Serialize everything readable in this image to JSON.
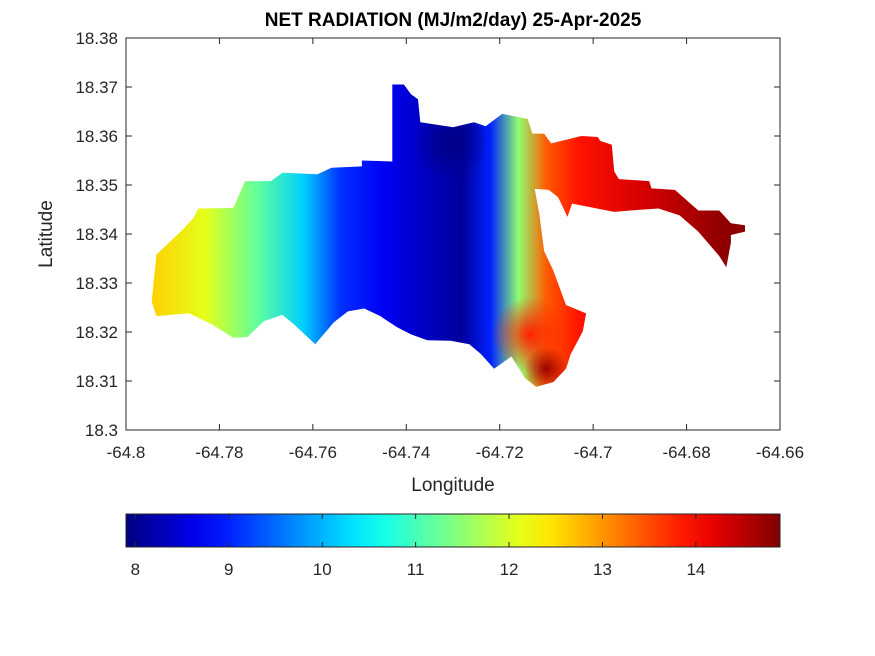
{
  "chart_data": {
    "type": "heatmap",
    "title": "NET RADIATION (MJ/m2/day) 25-Apr-2025",
    "xlabel": "Longitude",
    "ylabel": "Latitude",
    "xlim": [
      -64.8,
      -64.66
    ],
    "ylim": [
      18.3,
      18.38
    ],
    "xticks": [
      "-64.8",
      "-64.78",
      "-64.76",
      "-64.74",
      "-64.72",
      "-64.7",
      "-64.68",
      "-64.66"
    ],
    "yticks": [
      "18.3",
      "18.31",
      "18.32",
      "18.33",
      "18.34",
      "18.35",
      "18.36",
      "18.37",
      "18.38"
    ],
    "grid": false,
    "colormap": "jet",
    "colorbar": {
      "orientation": "horizontal",
      "placement": "bottom",
      "range": [
        7.9,
        14.9
      ],
      "ticks": [
        "8",
        "9",
        "10",
        "11",
        "12",
        "13",
        "14"
      ]
    },
    "landmass": [
      [
        -64.7935,
        18.3358
      ],
      [
        -64.7905,
        18.3385
      ],
      [
        -64.788,
        18.3408
      ],
      [
        -64.7855,
        18.3433
      ],
      [
        -64.7845,
        18.3452
      ],
      [
        -64.777,
        18.3453
      ],
      [
        -64.7745,
        18.3508
      ],
      [
        -64.769,
        18.3508
      ],
      [
        -64.7665,
        18.3525
      ],
      [
        -64.759,
        18.3522
      ],
      [
        -64.756,
        18.3535
      ],
      [
        -64.7495,
        18.3538
      ],
      [
        -64.7495,
        18.355
      ],
      [
        -64.743,
        18.3548
      ],
      [
        -64.743,
        18.3705
      ],
      [
        -64.7405,
        18.3705
      ],
      [
        -64.739,
        18.3685
      ],
      [
        -64.7375,
        18.3675
      ],
      [
        -64.737,
        18.3628
      ],
      [
        -64.73,
        18.3618
      ],
      [
        -64.7255,
        18.3628
      ],
      [
        -64.723,
        18.362
      ],
      [
        -64.7195,
        18.3645
      ],
      [
        -64.714,
        18.3635
      ],
      [
        -64.713,
        18.3605
      ],
      [
        -64.7105,
        18.3605
      ],
      [
        -64.709,
        18.3585
      ],
      [
        -64.7025,
        18.36
      ],
      [
        -64.699,
        18.3598
      ],
      [
        -64.6985,
        18.359
      ],
      [
        -64.696,
        18.3582
      ],
      [
        -64.6955,
        18.3528
      ],
      [
        -64.6945,
        18.3512
      ],
      [
        -64.688,
        18.3508
      ],
      [
        -64.6875,
        18.3493
      ],
      [
        -64.6825,
        18.349
      ],
      [
        -64.6775,
        18.3448
      ],
      [
        -64.673,
        18.3448
      ],
      [
        -64.6705,
        18.3422
      ],
      [
        -64.6675,
        18.3418
      ],
      [
        -64.6675,
        18.3405
      ],
      [
        -64.6705,
        18.3398
      ],
      [
        -64.6705,
        18.3382
      ],
      [
        -64.6715,
        18.3332
      ],
      [
        -64.673,
        18.3355
      ],
      [
        -64.6775,
        18.3405
      ],
      [
        -64.6815,
        18.3438
      ],
      [
        -64.686,
        18.3452
      ],
      [
        -64.692,
        18.3448
      ],
      [
        -64.6955,
        18.3445
      ],
      [
        -64.7045,
        18.3462
      ],
      [
        -64.7055,
        18.3435
      ],
      [
        -64.7065,
        18.3455
      ],
      [
        -64.7075,
        18.3475
      ],
      [
        -64.7095,
        18.349
      ],
      [
        -64.7125,
        18.3492
      ],
      [
        -64.7115,
        18.344
      ],
      [
        -64.7105,
        18.3365
      ],
      [
        -64.7085,
        18.3325
      ],
      [
        -64.7058,
        18.3255
      ],
      [
        -64.7015,
        18.3238
      ],
      [
        -64.7022,
        18.3202
      ],
      [
        -64.7035,
        18.3178
      ],
      [
        -64.7048,
        18.3155
      ],
      [
        -64.7058,
        18.3125
      ],
      [
        -64.7085,
        18.3098
      ],
      [
        -64.7122,
        18.3088
      ],
      [
        -64.7145,
        18.3105
      ],
      [
        -64.7175,
        18.315
      ],
      [
        -64.7212,
        18.3125
      ],
      [
        -64.724,
        18.3155
      ],
      [
        -64.7265,
        18.3175
      ],
      [
        -64.7305,
        18.3182
      ],
      [
        -64.7355,
        18.3183
      ],
      [
        -64.739,
        18.3195
      ],
      [
        -64.742,
        18.321
      ],
      [
        -64.7455,
        18.3232
      ],
      [
        -64.749,
        18.3248
      ],
      [
        -64.7525,
        18.3242
      ],
      [
        -64.7555,
        18.322
      ],
      [
        -64.7595,
        18.3175
      ],
      [
        -64.764,
        18.3215
      ],
      [
        -64.7665,
        18.3235
      ],
      [
        -64.7705,
        18.3222
      ],
      [
        -64.774,
        18.319
      ],
      [
        -64.777,
        18.3188
      ],
      [
        -64.7815,
        18.3215
      ],
      [
        -64.7865,
        18.3238
      ],
      [
        -64.7905,
        18.3235
      ],
      [
        -64.7935,
        18.3232
      ],
      [
        -64.7945,
        18.3262
      ]
    ],
    "field_gradient": {
      "axis": "longitude",
      "stops": [
        {
          "lon": -64.795,
          "value": 12.6
        },
        {
          "lon": -64.783,
          "value": 12.1
        },
        {
          "lon": -64.772,
          "value": 11.2
        },
        {
          "lon": -64.762,
          "value": 10.2
        },
        {
          "lon": -64.754,
          "value": 9.1
        },
        {
          "lon": -64.745,
          "value": 8.7
        },
        {
          "lon": -64.737,
          "value": 8.4
        },
        {
          "lon": -64.728,
          "value": 8.1
        },
        {
          "lon": -64.722,
          "value": 9.0
        },
        {
          "lon": -64.716,
          "value": 11.5
        },
        {
          "lon": -64.71,
          "value": 13.4
        },
        {
          "lon": -64.703,
          "value": 13.9
        },
        {
          "lon": -64.69,
          "value": 14.3
        },
        {
          "lon": -64.672,
          "value": 14.8
        }
      ]
    },
    "hotspots": [
      {
        "lon": -64.7135,
        "lat": 18.3195,
        "value": 13.8
      },
      {
        "lon": -64.71,
        "lat": 18.3125,
        "value": 14.7
      },
      {
        "lon": -64.7305,
        "lat": 18.3585,
        "value": 7.95
      }
    ]
  }
}
